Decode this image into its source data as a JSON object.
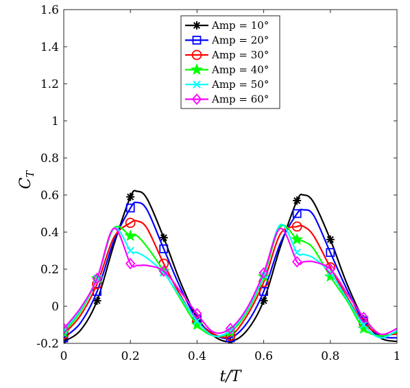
{
  "chart_data": {
    "type": "line",
    "xlabel": "t/T",
    "ylabel_main": "C",
    "ylabel_sub": "T",
    "xlim": [
      0,
      1
    ],
    "ylim": [
      -0.2,
      1.6
    ],
    "xticks": [
      0,
      0.2,
      0.4,
      0.6,
      0.8,
      1
    ],
    "yticks": [
      -0.2,
      0,
      0.2,
      0.4,
      0.6,
      0.8,
      1,
      1.2,
      1.4,
      1.6
    ],
    "xtick_labels": [
      "0",
      "0.2",
      "0.4",
      "0.6",
      "0.8",
      "1"
    ],
    "ytick_labels": [
      "-0.2",
      "0",
      "0.2",
      "0.4",
      "0.6",
      "0.8",
      "1",
      "1.2",
      "1.4",
      "1.6"
    ],
    "grid": false,
    "legend_position": "top-center",
    "series": [
      {
        "name": "Amp = 10°",
        "color": "#000000",
        "marker": "asterisk",
        "x": [
          0,
          0.05,
          0.1,
          0.15,
          0.2,
          0.22,
          0.25,
          0.3,
          0.35,
          0.4,
          0.45,
          0.5,
          0.55,
          0.6,
          0.65,
          0.7,
          0.72,
          0.75,
          0.8,
          0.85,
          0.9,
          0.95,
          1.0
        ],
        "y": [
          -0.19,
          -0.13,
          0.03,
          0.33,
          0.59,
          0.62,
          0.58,
          0.37,
          0.13,
          -0.06,
          -0.16,
          -0.19,
          -0.13,
          0.03,
          0.32,
          0.57,
          0.6,
          0.56,
          0.36,
          0.12,
          -0.07,
          -0.17,
          -0.19
        ],
        "marker_x": [
          0,
          0.1,
          0.2,
          0.3,
          0.4,
          0.5,
          0.6,
          0.7,
          0.8,
          0.9
        ],
        "marker_y": [
          -0.19,
          0.03,
          0.59,
          0.37,
          -0.06,
          -0.19,
          0.03,
          0.57,
          0.36,
          -0.07
        ]
      },
      {
        "name": "Amp = 20°",
        "color": "#0000ff",
        "marker": "square",
        "x": [
          0,
          0.05,
          0.1,
          0.15,
          0.2,
          0.22,
          0.25,
          0.3,
          0.35,
          0.4,
          0.45,
          0.5,
          0.55,
          0.6,
          0.65,
          0.7,
          0.72,
          0.75,
          0.8,
          0.85,
          0.9,
          0.95,
          1.0
        ],
        "y": [
          -0.17,
          -0.09,
          0.08,
          0.35,
          0.53,
          0.56,
          0.52,
          0.31,
          0.1,
          -0.07,
          -0.15,
          -0.17,
          -0.09,
          0.08,
          0.34,
          0.5,
          0.52,
          0.49,
          0.29,
          0.09,
          -0.08,
          -0.16,
          -0.17
        ],
        "marker_x": [
          0,
          0.1,
          0.2,
          0.3,
          0.4,
          0.5,
          0.6,
          0.7,
          0.8,
          0.9
        ],
        "marker_y": [
          -0.17,
          0.08,
          0.53,
          0.31,
          -0.07,
          -0.17,
          0.08,
          0.5,
          0.29,
          -0.08
        ]
      },
      {
        "name": "Amp = 30°",
        "color": "#ff0000",
        "marker": "circle",
        "x": [
          0,
          0.05,
          0.1,
          0.15,
          0.2,
          0.22,
          0.25,
          0.3,
          0.35,
          0.4,
          0.45,
          0.5,
          0.55,
          0.6,
          0.65,
          0.7,
          0.72,
          0.75,
          0.8,
          0.85,
          0.9,
          0.95,
          1.0
        ],
        "y": [
          -0.15,
          -0.05,
          0.12,
          0.37,
          0.45,
          0.46,
          0.42,
          0.23,
          0.06,
          -0.08,
          -0.15,
          -0.16,
          -0.05,
          0.13,
          0.39,
          0.43,
          0.43,
          0.38,
          0.21,
          0.05,
          -0.09,
          -0.15,
          -0.15
        ],
        "marker_x": [
          0,
          0.1,
          0.2,
          0.3,
          0.4,
          0.5,
          0.6,
          0.7,
          0.8,
          0.9
        ],
        "marker_y": [
          -0.15,
          0.12,
          0.45,
          0.23,
          -0.08,
          -0.16,
          0.13,
          0.43,
          0.21,
          -0.09
        ]
      },
      {
        "name": "Amp = 40°",
        "color": "#00ff00",
        "marker": "star",
        "x": [
          0,
          0.05,
          0.1,
          0.15,
          0.2,
          0.22,
          0.25,
          0.3,
          0.35,
          0.4,
          0.45,
          0.5,
          0.55,
          0.6,
          0.65,
          0.7,
          0.72,
          0.75,
          0.8,
          0.85,
          0.9,
          0.95,
          1.0
        ],
        "y": [
          -0.14,
          -0.03,
          0.15,
          0.42,
          0.38,
          0.38,
          0.32,
          0.19,
          0.04,
          -0.1,
          -0.16,
          -0.14,
          -0.03,
          0.16,
          0.43,
          0.36,
          0.35,
          0.31,
          0.16,
          0.03,
          -0.12,
          -0.16,
          -0.14
        ],
        "marker_x": [
          0,
          0.1,
          0.2,
          0.3,
          0.4,
          0.5,
          0.6,
          0.7,
          0.8,
          0.9
        ],
        "marker_y": [
          -0.14,
          0.15,
          0.38,
          0.19,
          -0.1,
          -0.14,
          0.16,
          0.36,
          0.16,
          -0.12
        ]
      },
      {
        "name": "Amp = 50°",
        "color": "#00ffff",
        "marker": "x",
        "x": [
          0,
          0.05,
          0.1,
          0.15,
          0.2,
          0.22,
          0.25,
          0.3,
          0.35,
          0.4,
          0.45,
          0.5,
          0.55,
          0.6,
          0.65,
          0.7,
          0.72,
          0.75,
          0.8,
          0.85,
          0.9,
          0.95,
          1.0
        ],
        "y": [
          -0.13,
          -0.02,
          0.15,
          0.42,
          0.3,
          0.29,
          0.26,
          0.18,
          0.05,
          -0.08,
          -0.16,
          -0.13,
          -0.02,
          0.17,
          0.44,
          0.29,
          0.28,
          0.26,
          0.18,
          0.04,
          -0.1,
          -0.17,
          -0.13
        ],
        "marker_x": [
          0,
          0.1,
          0.2,
          0.3,
          0.4,
          0.5,
          0.6,
          0.7,
          0.8,
          0.9
        ],
        "marker_y": [
          -0.13,
          0.15,
          0.3,
          0.18,
          -0.08,
          -0.13,
          0.17,
          0.29,
          0.18,
          -0.1
        ]
      },
      {
        "name": "Amp = 60°",
        "color": "#ff00ff",
        "marker": "diamond",
        "x": [
          0,
          0.05,
          0.1,
          0.15,
          0.2,
          0.22,
          0.25,
          0.3,
          0.35,
          0.4,
          0.45,
          0.5,
          0.55,
          0.6,
          0.65,
          0.7,
          0.72,
          0.75,
          0.8,
          0.85,
          0.9,
          0.95,
          1.0
        ],
        "y": [
          -0.12,
          -0.01,
          0.15,
          0.42,
          0.23,
          0.22,
          0.22,
          0.19,
          0.08,
          -0.04,
          -0.14,
          -0.12,
          -0.01,
          0.18,
          0.42,
          0.24,
          0.24,
          0.24,
          0.2,
          0.07,
          -0.06,
          -0.15,
          -0.12
        ],
        "marker_x": [
          0,
          0.1,
          0.2,
          0.3,
          0.4,
          0.5,
          0.6,
          0.7,
          0.8,
          0.9
        ],
        "marker_y": [
          -0.12,
          0.15,
          0.23,
          0.19,
          -0.04,
          -0.12,
          0.18,
          0.24,
          0.2,
          -0.06
        ]
      }
    ]
  }
}
